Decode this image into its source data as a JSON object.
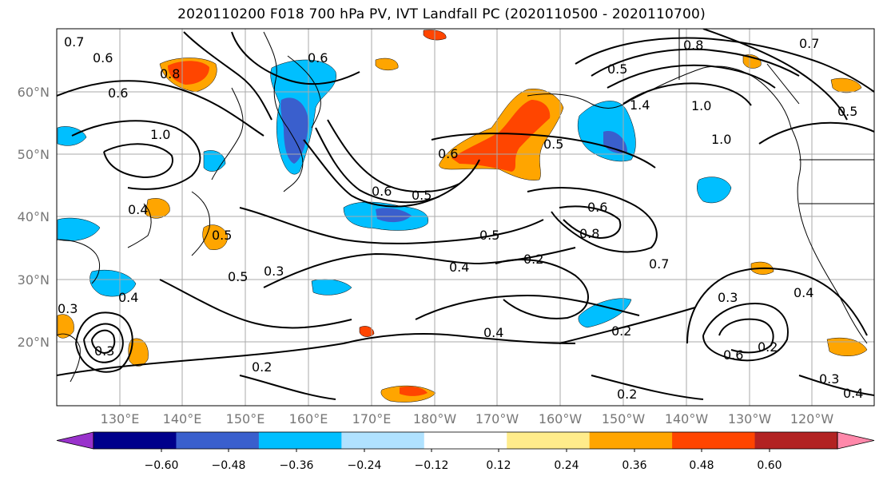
{
  "title": "2020110200 F018 700 hPa PV, IVT Landfall PC (2020110500 - 2020110700)",
  "lat_labels": [
    "20°N",
    "30°N",
    "40°N",
    "50°N",
    "60°N"
  ],
  "lon_labels": [
    "130°E",
    "140°E",
    "150°E",
    "160°E",
    "170°E",
    "180°W",
    "170°W",
    "160°W",
    "150°W",
    "140°W",
    "130°W",
    "120°W"
  ],
  "colorbar": {
    "colors": [
      "#9932cc",
      "#00008b",
      "#3a5fcd",
      "#00bfff",
      "#b0e2ff",
      "#ffffff",
      "#ffec8b",
      "#ffa500",
      "#ff4500",
      "#b22222",
      "#ff88aa"
    ],
    "ticks": [
      "−0.60",
      "−0.48",
      "−0.36",
      "−0.24",
      "−0.12",
      "0.12",
      "0.24",
      "0.36",
      "0.48",
      "0.60"
    ]
  },
  "contour_labels": [
    "0.7",
    "0.6",
    "0.8",
    "0.6",
    "1.0",
    "0.4",
    "0.5",
    "0.6",
    "0.5",
    "0.6",
    "0.5",
    "0.5",
    "0.6",
    "0.8",
    "0.7",
    "0.4",
    "0.2",
    "0.3",
    "0.4",
    "0.4",
    "0.2",
    "0.2",
    "0.3",
    "0.6",
    "0.2",
    "0.4",
    "1.4",
    "1.0",
    "1.0",
    "0.8",
    "0.7",
    "0.5",
    "0.4",
    "0.3",
    "0.2",
    "0.5",
    "0.3",
    "0.3",
    "0.5",
    "0.6"
  ]
}
